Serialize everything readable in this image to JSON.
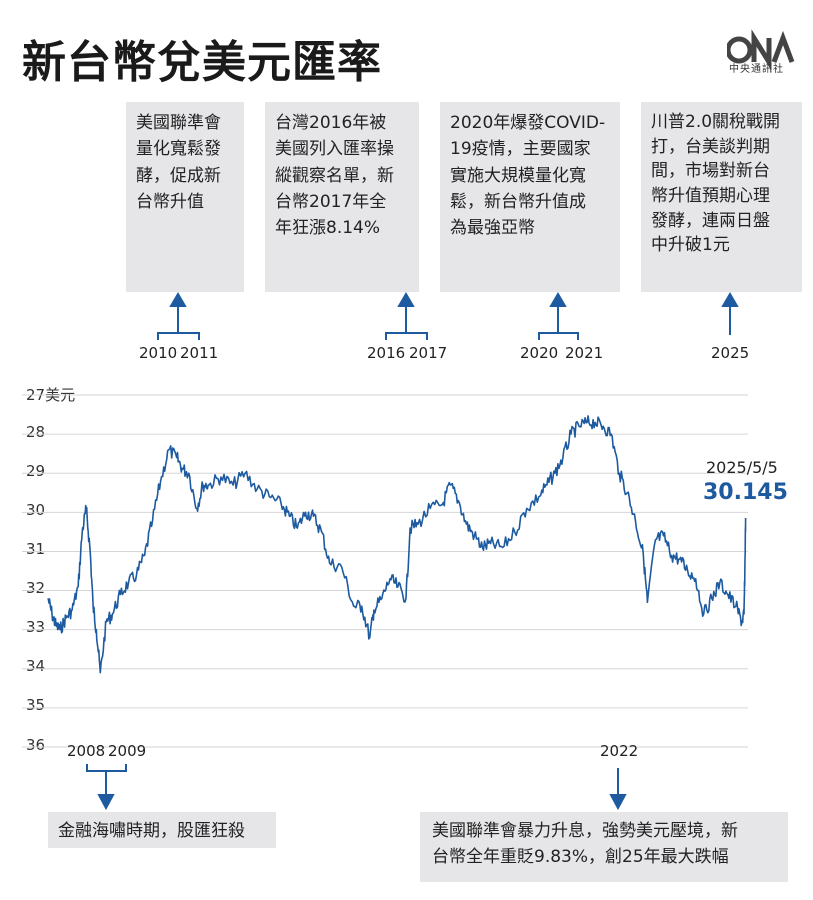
{
  "title": "新台幣兌美元匯率",
  "logo_text": "中央通訊社",
  "colors": {
    "line": "#1d5aa0",
    "accent": "#1d5aa0",
    "note_bg": "#e6e6e9",
    "grid": "#d6d6d6"
  },
  "annotations_top": [
    {
      "years": [
        "2010",
        "2011"
      ],
      "lines": [
        "美國聯準會",
        "量化寬鬆發",
        "酵，促成新",
        "台幣升值"
      ]
    },
    {
      "years": [
        "2016",
        "2017"
      ],
      "lines": [
        "台灣2016年被",
        "美國列入匯率操",
        "縱觀察名單，新",
        "台幣2017年全",
        "年狂漲8.14%"
      ]
    },
    {
      "years": [
        "2020",
        "2021"
      ],
      "lines": [
        "2020年爆發COVID-",
        "19疫情，主要國家",
        "實施大規模量化寬",
        "鬆，新台幣升值成",
        "為最強亞幣"
      ]
    },
    {
      "years": [
        "2025"
      ],
      "lines": [
        "川普2.0關稅戰開",
        "打，台美談判期",
        "間，市場對新台",
        "幣升值預期心理",
        "發酵，連兩日盤",
        "中升破1元"
      ]
    }
  ],
  "annotations_bottom": [
    {
      "years": [
        "2008",
        "2009"
      ],
      "lines": [
        "金融海嘯時期，股匯狂殺"
      ]
    },
    {
      "years": [
        "2022"
      ],
      "lines": [
        "美國聯準會暴力升息，強勢美元壓境，新",
        "台幣全年重貶9.83%，創25年最大跌幅"
      ]
    }
  ],
  "chart_data": {
    "type": "line",
    "title": "新台幣兌美元匯率",
    "ylabel": "美元",
    "y_tick_labels": [
      "27美元",
      "28",
      "29",
      "30",
      "31",
      "32",
      "33",
      "34",
      "35",
      "36"
    ],
    "ylim": [
      27,
      36
    ],
    "y_inverted": true,
    "grid": true,
    "xlim": [
      2008.0,
      2025.4
    ],
    "series": [
      {
        "x": [
          2008.0,
          2008.1,
          2008.2,
          2008.3,
          2008.45,
          2008.6,
          2008.75,
          2008.85,
          2008.95,
          2009.05,
          2009.12,
          2009.2,
          2009.3,
          2009.45,
          2009.6,
          2009.8,
          2010.0,
          2010.2,
          2010.4,
          2010.6,
          2010.8,
          2011.0,
          2011.2,
          2011.35,
          2011.5,
          2011.7,
          2011.85,
          2012.0,
          2012.3,
          2012.6,
          2012.9,
          2013.2,
          2013.5,
          2013.8,
          2014.0,
          2014.2,
          2014.4,
          2014.6,
          2014.8,
          2015.0,
          2015.3,
          2015.6,
          2015.8,
          2016.0,
          2016.1,
          2016.3,
          2016.5,
          2016.7,
          2016.9,
          2017.0,
          2017.2,
          2017.5,
          2017.8,
          2018.0,
          2018.2,
          2018.4,
          2018.6,
          2018.8,
          2019.0,
          2019.3,
          2019.6,
          2019.9,
          2020.2,
          2020.4,
          2020.6,
          2020.8,
          2021.0,
          2021.2,
          2021.4,
          2021.6,
          2021.8,
          2022.0,
          2022.2,
          2022.4,
          2022.6,
          2022.8,
          2022.9,
          2023.1,
          2023.3,
          2023.5,
          2023.7,
          2023.9,
          2024.1,
          2024.3,
          2024.5,
          2024.7,
          2024.9,
          2025.1,
          2025.25,
          2025.3,
          2025.32,
          2025.34
        ],
        "y": [
          32.2,
          32.6,
          32.9,
          33.0,
          32.7,
          32.5,
          31.9,
          30.5,
          29.9,
          31.0,
          32.4,
          33.0,
          34.1,
          32.8,
          32.6,
          32.1,
          31.8,
          31.6,
          31.1,
          30.2,
          29.2,
          28.4,
          28.6,
          28.9,
          29.0,
          29.9,
          29.3,
          29.3,
          29.1,
          29.3,
          29.0,
          29.4,
          29.6,
          29.8,
          30.1,
          30.4,
          30.0,
          30.1,
          30.5,
          31.3,
          31.4,
          32.4,
          32.4,
          33.2,
          32.5,
          32.2,
          31.7,
          31.9,
          32.2,
          30.4,
          30.3,
          29.9,
          29.8,
          29.3,
          29.7,
          30.3,
          30.6,
          30.9,
          30.8,
          30.9,
          30.5,
          29.9,
          29.6,
          29.3,
          29.0,
          28.6,
          28.0,
          27.8,
          27.7,
          27.7,
          27.8,
          28.0,
          29.0,
          29.5,
          30.2,
          31.1,
          32.3,
          30.7,
          30.6,
          31.1,
          31.2,
          31.5,
          31.7,
          32.6,
          32.2,
          31.8,
          32.1,
          32.4,
          32.8,
          32.6,
          31.6,
          30.145
        ]
      }
    ],
    "final_point": {
      "date": "2025/5/5",
      "value": "30.145"
    },
    "x_marks_top": [
      "2010",
      "2011",
      "2016",
      "2017",
      "2020",
      "2021",
      "2025"
    ],
    "x_marks_bottom": [
      "2008",
      "2009",
      "2022"
    ]
  }
}
